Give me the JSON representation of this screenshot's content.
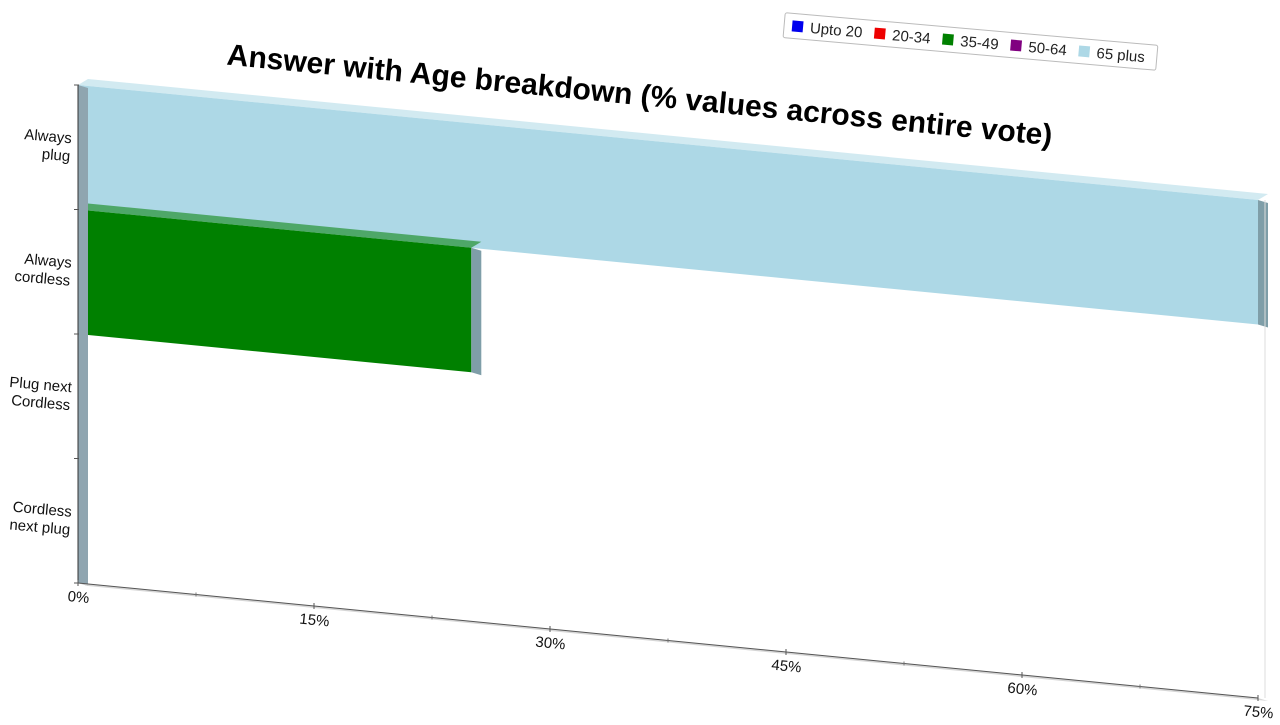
{
  "chart_data": {
    "type": "bar",
    "orientation": "horizontal",
    "stacked": true,
    "three_d": true,
    "title": "Answer with Age breakdown (% values across entire vote)",
    "categories": [
      "Always plug",
      "Always cordless",
      "Plug next Cordless",
      "Cordless next plug"
    ],
    "category_lines": [
      [
        "Always",
        "plug"
      ],
      [
        "Always",
        "cordless"
      ],
      [
        "Plug next",
        "Cordless"
      ],
      [
        "Cordless",
        "next plug"
      ]
    ],
    "series": [
      {
        "name": "Upto 20",
        "color": "#0000ee",
        "values": [
          0,
          0,
          0,
          0
        ]
      },
      {
        "name": "20-34",
        "color": "#ee0000",
        "values": [
          0,
          0,
          0,
          0
        ]
      },
      {
        "name": "35-49",
        "color": "#008000",
        "values": [
          0,
          25,
          0,
          0
        ]
      },
      {
        "name": "50-64",
        "color": "#800080",
        "values": [
          0,
          0,
          0,
          0
        ]
      },
      {
        "name": "65 plus",
        "color": "#add8e6",
        "values": [
          75,
          0,
          0,
          0
        ]
      }
    ],
    "xlim": [
      0,
      75
    ],
    "x_ticks": [
      0,
      15,
      30,
      45,
      60,
      75
    ],
    "x_tick_labels": [
      "0%",
      "15%",
      "30%",
      "45%",
      "60%",
      "75%"
    ],
    "xlabel": "",
    "ylabel": "",
    "legend_position": "top-right",
    "grid": false
  }
}
